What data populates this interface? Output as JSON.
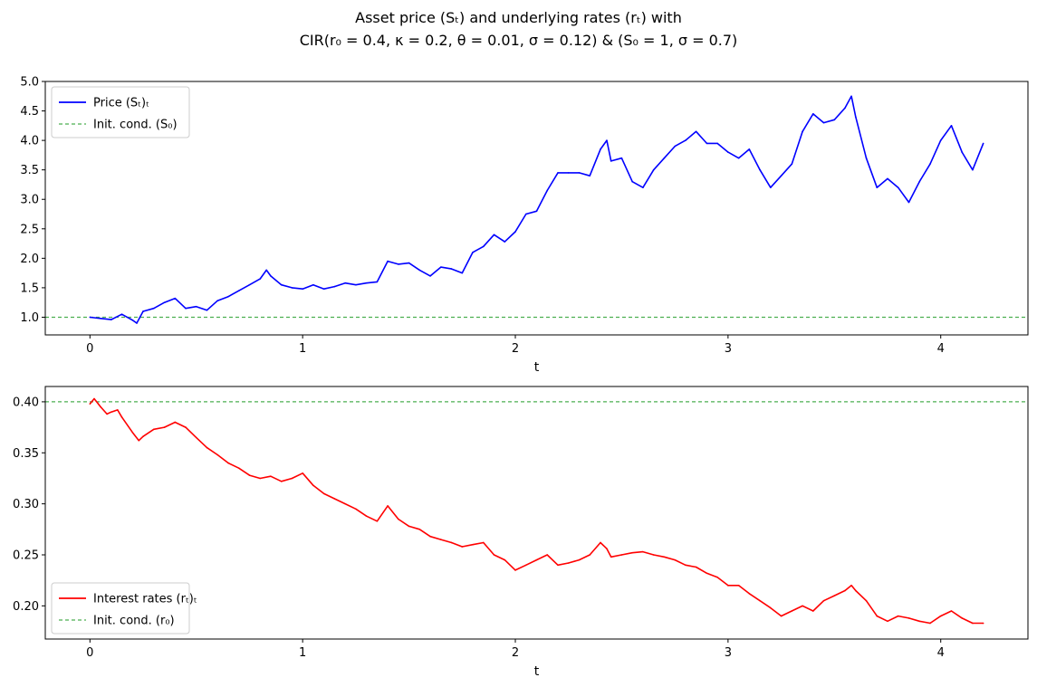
{
  "figure": {
    "title_line1": "Asset price (Sₜ) and underlying rates (rₜ) with",
    "title_line2": "CIR(r₀ = 0.4, κ = 0.2, θ = 0.01, σ = 0.12) & (S₀ = 1, σ = 0.7)"
  },
  "chart_data": [
    {
      "type": "line",
      "xlabel": "t",
      "ylabel": "",
      "xlim": [
        -0.21,
        4.41
      ],
      "ylim": [
        0.7,
        5.0
      ],
      "xticks": [
        0,
        1,
        2,
        3,
        4
      ],
      "yticks": [
        1.0,
        1.5,
        2.0,
        2.5,
        3.0,
        3.5,
        4.0,
        4.5,
        5.0
      ],
      "grid": false,
      "legend_position": "top-left",
      "colors": {
        "series": "#0000ff",
        "reference": "#4caf50"
      },
      "series": [
        {
          "name": "Price (Sₜ)ₜ",
          "x": [
            0,
            0.05,
            0.1,
            0.15,
            0.2,
            0.22,
            0.25,
            0.3,
            0.35,
            0.4,
            0.45,
            0.5,
            0.55,
            0.6,
            0.65,
            0.7,
            0.75,
            0.8,
            0.83,
            0.85,
            0.9,
            0.95,
            1.0,
            1.05,
            1.1,
            1.15,
            1.2,
            1.25,
            1.3,
            1.35,
            1.4,
            1.45,
            1.5,
            1.55,
            1.6,
            1.65,
            1.7,
            1.75,
            1.8,
            1.85,
            1.9,
            1.95,
            2.0,
            2.05,
            2.1,
            2.15,
            2.2,
            2.25,
            2.3,
            2.35,
            2.4,
            2.43,
            2.45,
            2.5,
            2.55,
            2.6,
            2.65,
            2.7,
            2.75,
            2.8,
            2.85,
            2.9,
            2.95,
            3.0,
            3.05,
            3.1,
            3.15,
            3.2,
            3.25,
            3.3,
            3.35,
            3.4,
            3.45,
            3.5,
            3.55,
            3.58,
            3.6,
            3.65,
            3.7,
            3.75,
            3.8,
            3.85,
            3.9,
            3.95,
            4.0,
            4.05,
            4.1,
            4.15,
            4.2
          ],
          "values": [
            1.0,
            0.98,
            0.96,
            1.05,
            0.95,
            0.9,
            1.1,
            1.15,
            1.25,
            1.32,
            1.15,
            1.18,
            1.12,
            1.28,
            1.35,
            1.45,
            1.55,
            1.65,
            1.8,
            1.7,
            1.55,
            1.5,
            1.48,
            1.55,
            1.48,
            1.52,
            1.58,
            1.55,
            1.58,
            1.6,
            1.95,
            1.9,
            1.92,
            1.8,
            1.7,
            1.85,
            1.82,
            1.75,
            2.1,
            2.2,
            2.4,
            2.28,
            2.45,
            2.75,
            2.8,
            3.15,
            3.45,
            3.45,
            3.45,
            3.4,
            3.85,
            4.0,
            3.65,
            3.7,
            3.3,
            3.2,
            3.5,
            3.7,
            3.9,
            4.0,
            4.15,
            3.95,
            3.95,
            3.8,
            3.7,
            3.85,
            3.5,
            3.2,
            3.4,
            3.6,
            4.15,
            4.45,
            4.3,
            4.35,
            4.55,
            4.75,
            4.4,
            3.7,
            3.2,
            3.35,
            3.2,
            2.95,
            3.3,
            3.6,
            4.0,
            4.25,
            3.8,
            3.5,
            3.95
          ]
        },
        {
          "name": "Init. cond. (S₀)",
          "values": [
            1.0
          ]
        }
      ]
    },
    {
      "type": "line",
      "xlabel": "t",
      "ylabel": "",
      "xlim": [
        -0.21,
        4.41
      ],
      "ylim": [
        0.1675,
        0.415
      ],
      "xticks": [
        0,
        1,
        2,
        3,
        4
      ],
      "yticks": [
        0.2,
        0.25,
        0.3,
        0.35,
        0.4
      ],
      "grid": false,
      "legend_position": "bottom-left",
      "colors": {
        "series": "#ff0000",
        "reference": "#4caf50"
      },
      "series": [
        {
          "name": "Interest rates (rₜ)ₜ",
          "x": [
            0,
            0.02,
            0.05,
            0.08,
            0.1,
            0.13,
            0.15,
            0.2,
            0.23,
            0.25,
            0.3,
            0.35,
            0.4,
            0.45,
            0.5,
            0.55,
            0.6,
            0.65,
            0.7,
            0.75,
            0.8,
            0.85,
            0.9,
            0.95,
            1.0,
            1.05,
            1.1,
            1.15,
            1.2,
            1.25,
            1.3,
            1.35,
            1.4,
            1.45,
            1.5,
            1.55,
            1.6,
            1.65,
            1.7,
            1.75,
            1.8,
            1.85,
            1.9,
            1.95,
            2.0,
            2.05,
            2.1,
            2.15,
            2.2,
            2.25,
            2.3,
            2.35,
            2.4,
            2.43,
            2.45,
            2.5,
            2.55,
            2.6,
            2.65,
            2.7,
            2.75,
            2.8,
            2.85,
            2.9,
            2.95,
            3.0,
            3.05,
            3.1,
            3.15,
            3.2,
            3.25,
            3.3,
            3.35,
            3.4,
            3.45,
            3.5,
            3.55,
            3.58,
            3.6,
            3.65,
            3.7,
            3.75,
            3.8,
            3.85,
            3.9,
            3.95,
            4.0,
            4.05,
            4.1,
            4.15,
            4.2
          ],
          "values": [
            0.398,
            0.403,
            0.395,
            0.388,
            0.39,
            0.392,
            0.385,
            0.37,
            0.362,
            0.366,
            0.373,
            0.375,
            0.38,
            0.375,
            0.365,
            0.355,
            0.348,
            0.34,
            0.335,
            0.328,
            0.325,
            0.327,
            0.322,
            0.325,
            0.33,
            0.318,
            0.31,
            0.305,
            0.3,
            0.295,
            0.288,
            0.283,
            0.298,
            0.285,
            0.278,
            0.275,
            0.268,
            0.265,
            0.262,
            0.258,
            0.26,
            0.262,
            0.25,
            0.245,
            0.235,
            0.24,
            0.245,
            0.25,
            0.24,
            0.242,
            0.245,
            0.25,
            0.262,
            0.256,
            0.248,
            0.25,
            0.252,
            0.253,
            0.25,
            0.248,
            0.245,
            0.24,
            0.238,
            0.232,
            0.228,
            0.22,
            0.22,
            0.212,
            0.205,
            0.198,
            0.19,
            0.195,
            0.2,
            0.195,
            0.205,
            0.21,
            0.215,
            0.22,
            0.215,
            0.205,
            0.19,
            0.185,
            0.19,
            0.188,
            0.185,
            0.183,
            0.19,
            0.195,
            0.188,
            0.183,
            0.183
          ]
        },
        {
          "name": "Init. cond. (r₀)",
          "values": [
            0.4
          ]
        }
      ]
    }
  ]
}
